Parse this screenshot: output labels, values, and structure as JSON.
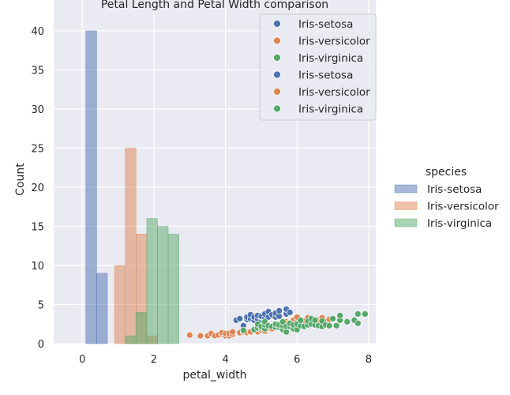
{
  "chart_data": {
    "type": "bar",
    "title": "Petal Length and Petal Width comparison",
    "xlabel": "petal_width",
    "ylabel": "Count",
    "xlim": [
      -0.8,
      8.2
    ],
    "ylim": [
      0,
      40
    ],
    "x_ticks": [
      0,
      2,
      4,
      6,
      8
    ],
    "y_ticks": [
      0,
      5,
      10,
      15,
      20,
      25,
      30,
      35,
      40
    ],
    "grid": true,
    "colors": {
      "Iris-setosa": "#4c72b0",
      "Iris-versicolor": "#dd8452",
      "Iris-virginica": "#55a868",
      "background": "#eaeaf2",
      "grid": "#ffffff"
    },
    "histogram_series": [
      {
        "name": "Iris-setosa",
        "bins": [
          {
            "x0": 0.1,
            "x1": 0.4,
            "count": 40
          },
          {
            "x0": 0.4,
            "x1": 0.7,
            "count": 9
          }
        ]
      },
      {
        "name": "Iris-versicolor",
        "bins": [
          {
            "x0": 0.9,
            "x1": 1.2,
            "count": 10
          },
          {
            "x0": 1.2,
            "x1": 1.5,
            "count": 25
          },
          {
            "x0": 1.5,
            "x1": 1.8,
            "count": 14
          },
          {
            "x0": 1.8,
            "x1": 2.1,
            "count": 1
          }
        ]
      },
      {
        "name": "Iris-virginica",
        "bins": [
          {
            "x0": 1.2,
            "x1": 1.5,
            "count": 1
          },
          {
            "x0": 1.5,
            "x1": 1.8,
            "count": 4
          },
          {
            "x0": 1.8,
            "x1": 2.1,
            "count": 16
          },
          {
            "x0": 2.1,
            "x1": 2.4,
            "count": 15
          },
          {
            "x0": 2.4,
            "x1": 2.7,
            "count": 14
          }
        ]
      }
    ],
    "scatter_series": [
      {
        "name": "Iris-setosa",
        "points": [
          [
            4.3,
            3.0
          ],
          [
            4.4,
            3.2
          ],
          [
            4.5,
            2.3
          ],
          [
            4.6,
            3.1
          ],
          [
            4.6,
            3.4
          ],
          [
            4.7,
            3.2
          ],
          [
            4.7,
            3.7
          ],
          [
            4.8,
            3.0
          ],
          [
            4.8,
            3.4
          ],
          [
            4.9,
            3.1
          ],
          [
            4.9,
            3.6
          ],
          [
            5.0,
            3.0
          ],
          [
            5.0,
            3.4
          ],
          [
            5.0,
            3.5
          ],
          [
            5.1,
            3.3
          ],
          [
            5.1,
            3.8
          ],
          [
            5.2,
            3.4
          ],
          [
            5.2,
            4.1
          ],
          [
            5.3,
            3.7
          ],
          [
            5.4,
            3.4
          ],
          [
            5.4,
            3.9
          ],
          [
            5.5,
            3.5
          ],
          [
            5.5,
            4.2
          ],
          [
            5.7,
            3.8
          ],
          [
            5.7,
            4.4
          ],
          [
            5.8,
            4.0
          ]
        ]
      },
      {
        "name": "Iris-versicolor",
        "points": [
          [
            3.0,
            1.1
          ],
          [
            3.3,
            1.0
          ],
          [
            3.5,
            1.0
          ],
          [
            3.6,
            1.3
          ],
          [
            3.7,
            1.0
          ],
          [
            3.8,
            1.1
          ],
          [
            3.9,
            1.2
          ],
          [
            3.9,
            1.4
          ],
          [
            4.0,
            1.0
          ],
          [
            4.0,
            1.3
          ],
          [
            4.1,
            1.0
          ],
          [
            4.1,
            1.3
          ],
          [
            4.2,
            1.2
          ],
          [
            4.2,
            1.5
          ],
          [
            4.4,
            1.3
          ],
          [
            4.4,
            1.4
          ],
          [
            4.5,
            1.5
          ],
          [
            4.5,
            1.7
          ],
          [
            4.6,
            1.4
          ],
          [
            4.7,
            1.4
          ],
          [
            4.7,
            1.5
          ],
          [
            4.8,
            1.8
          ],
          [
            4.9,
            1.5
          ],
          [
            5.0,
            1.7
          ],
          [
            5.1,
            1.6
          ],
          [
            5.2,
            2.0
          ],
          [
            5.3,
            1.9
          ],
          [
            5.4,
            2.1
          ],
          [
            5.5,
            2.2
          ],
          [
            5.6,
            2.5
          ],
          [
            5.7,
            2.8
          ],
          [
            5.8,
            2.7
          ],
          [
            5.9,
            3.0
          ],
          [
            6.0,
            2.9
          ],
          [
            6.0,
            3.4
          ],
          [
            6.1,
            2.8
          ],
          [
            6.2,
            2.9
          ],
          [
            6.3,
            3.3
          ],
          [
            6.4,
            3.2
          ],
          [
            6.5,
            2.8
          ],
          [
            6.6,
            2.9
          ],
          [
            6.6,
            3.0
          ],
          [
            6.7,
            3.1
          ],
          [
            6.7,
            3.3
          ],
          [
            6.8,
            2.8
          ],
          [
            6.9,
            3.1
          ],
          [
            7.0,
            3.2
          ]
        ]
      },
      {
        "name": "Iris-virginica",
        "points": [
          [
            4.5,
            1.7
          ],
          [
            4.8,
            1.8
          ],
          [
            4.9,
            2.0
          ],
          [
            4.9,
            2.5
          ],
          [
            5.0,
            2.0
          ],
          [
            5.0,
            2.2
          ],
          [
            5.1,
            1.9
          ],
          [
            5.1,
            2.4
          ],
          [
            5.1,
            2.8
          ],
          [
            5.2,
            2.3
          ],
          [
            5.3,
            2.2
          ],
          [
            5.4,
            2.1
          ],
          [
            5.4,
            2.5
          ],
          [
            5.5,
            2.1
          ],
          [
            5.5,
            2.4
          ],
          [
            5.6,
            1.8
          ],
          [
            5.6,
            2.3
          ],
          [
            5.6,
            2.8
          ],
          [
            5.7,
            1.5
          ],
          [
            5.7,
            2.2
          ],
          [
            5.8,
            2.2
          ],
          [
            5.8,
            2.6
          ],
          [
            5.9,
            1.9
          ],
          [
            5.9,
            2.4
          ],
          [
            6.0,
            1.8
          ],
          [
            6.0,
            2.5
          ],
          [
            6.1,
            2.3
          ],
          [
            6.1,
            3.0
          ],
          [
            6.2,
            2.2
          ],
          [
            6.3,
            2.4
          ],
          [
            6.3,
            2.9
          ],
          [
            6.4,
            2.5
          ],
          [
            6.4,
            3.2
          ],
          [
            6.5,
            2.4
          ],
          [
            6.5,
            3.0
          ],
          [
            6.6,
            2.3
          ],
          [
            6.7,
            2.2
          ],
          [
            6.7,
            2.9
          ],
          [
            6.8,
            2.4
          ],
          [
            6.9,
            2.3
          ],
          [
            7.0,
            3.2
          ],
          [
            7.1,
            2.3
          ],
          [
            7.2,
            3.0
          ],
          [
            7.2,
            3.6
          ],
          [
            7.4,
            2.8
          ],
          [
            7.6,
            3.0
          ],
          [
            7.7,
            2.6
          ],
          [
            7.7,
            3.8
          ],
          [
            7.9,
            3.8
          ]
        ]
      }
    ],
    "inner_legend": {
      "position": "upper-right",
      "entries": [
        "Iris-setosa",
        "Iris-versicolor",
        "Iris-virginica",
        "Iris-setosa",
        "Iris-versicolor",
        "Iris-virginica"
      ]
    },
    "outer_legend": {
      "position": "right",
      "title": "species",
      "entries": [
        "Iris-setosa",
        "Iris-versicolor",
        "Iris-virginica"
      ]
    }
  }
}
